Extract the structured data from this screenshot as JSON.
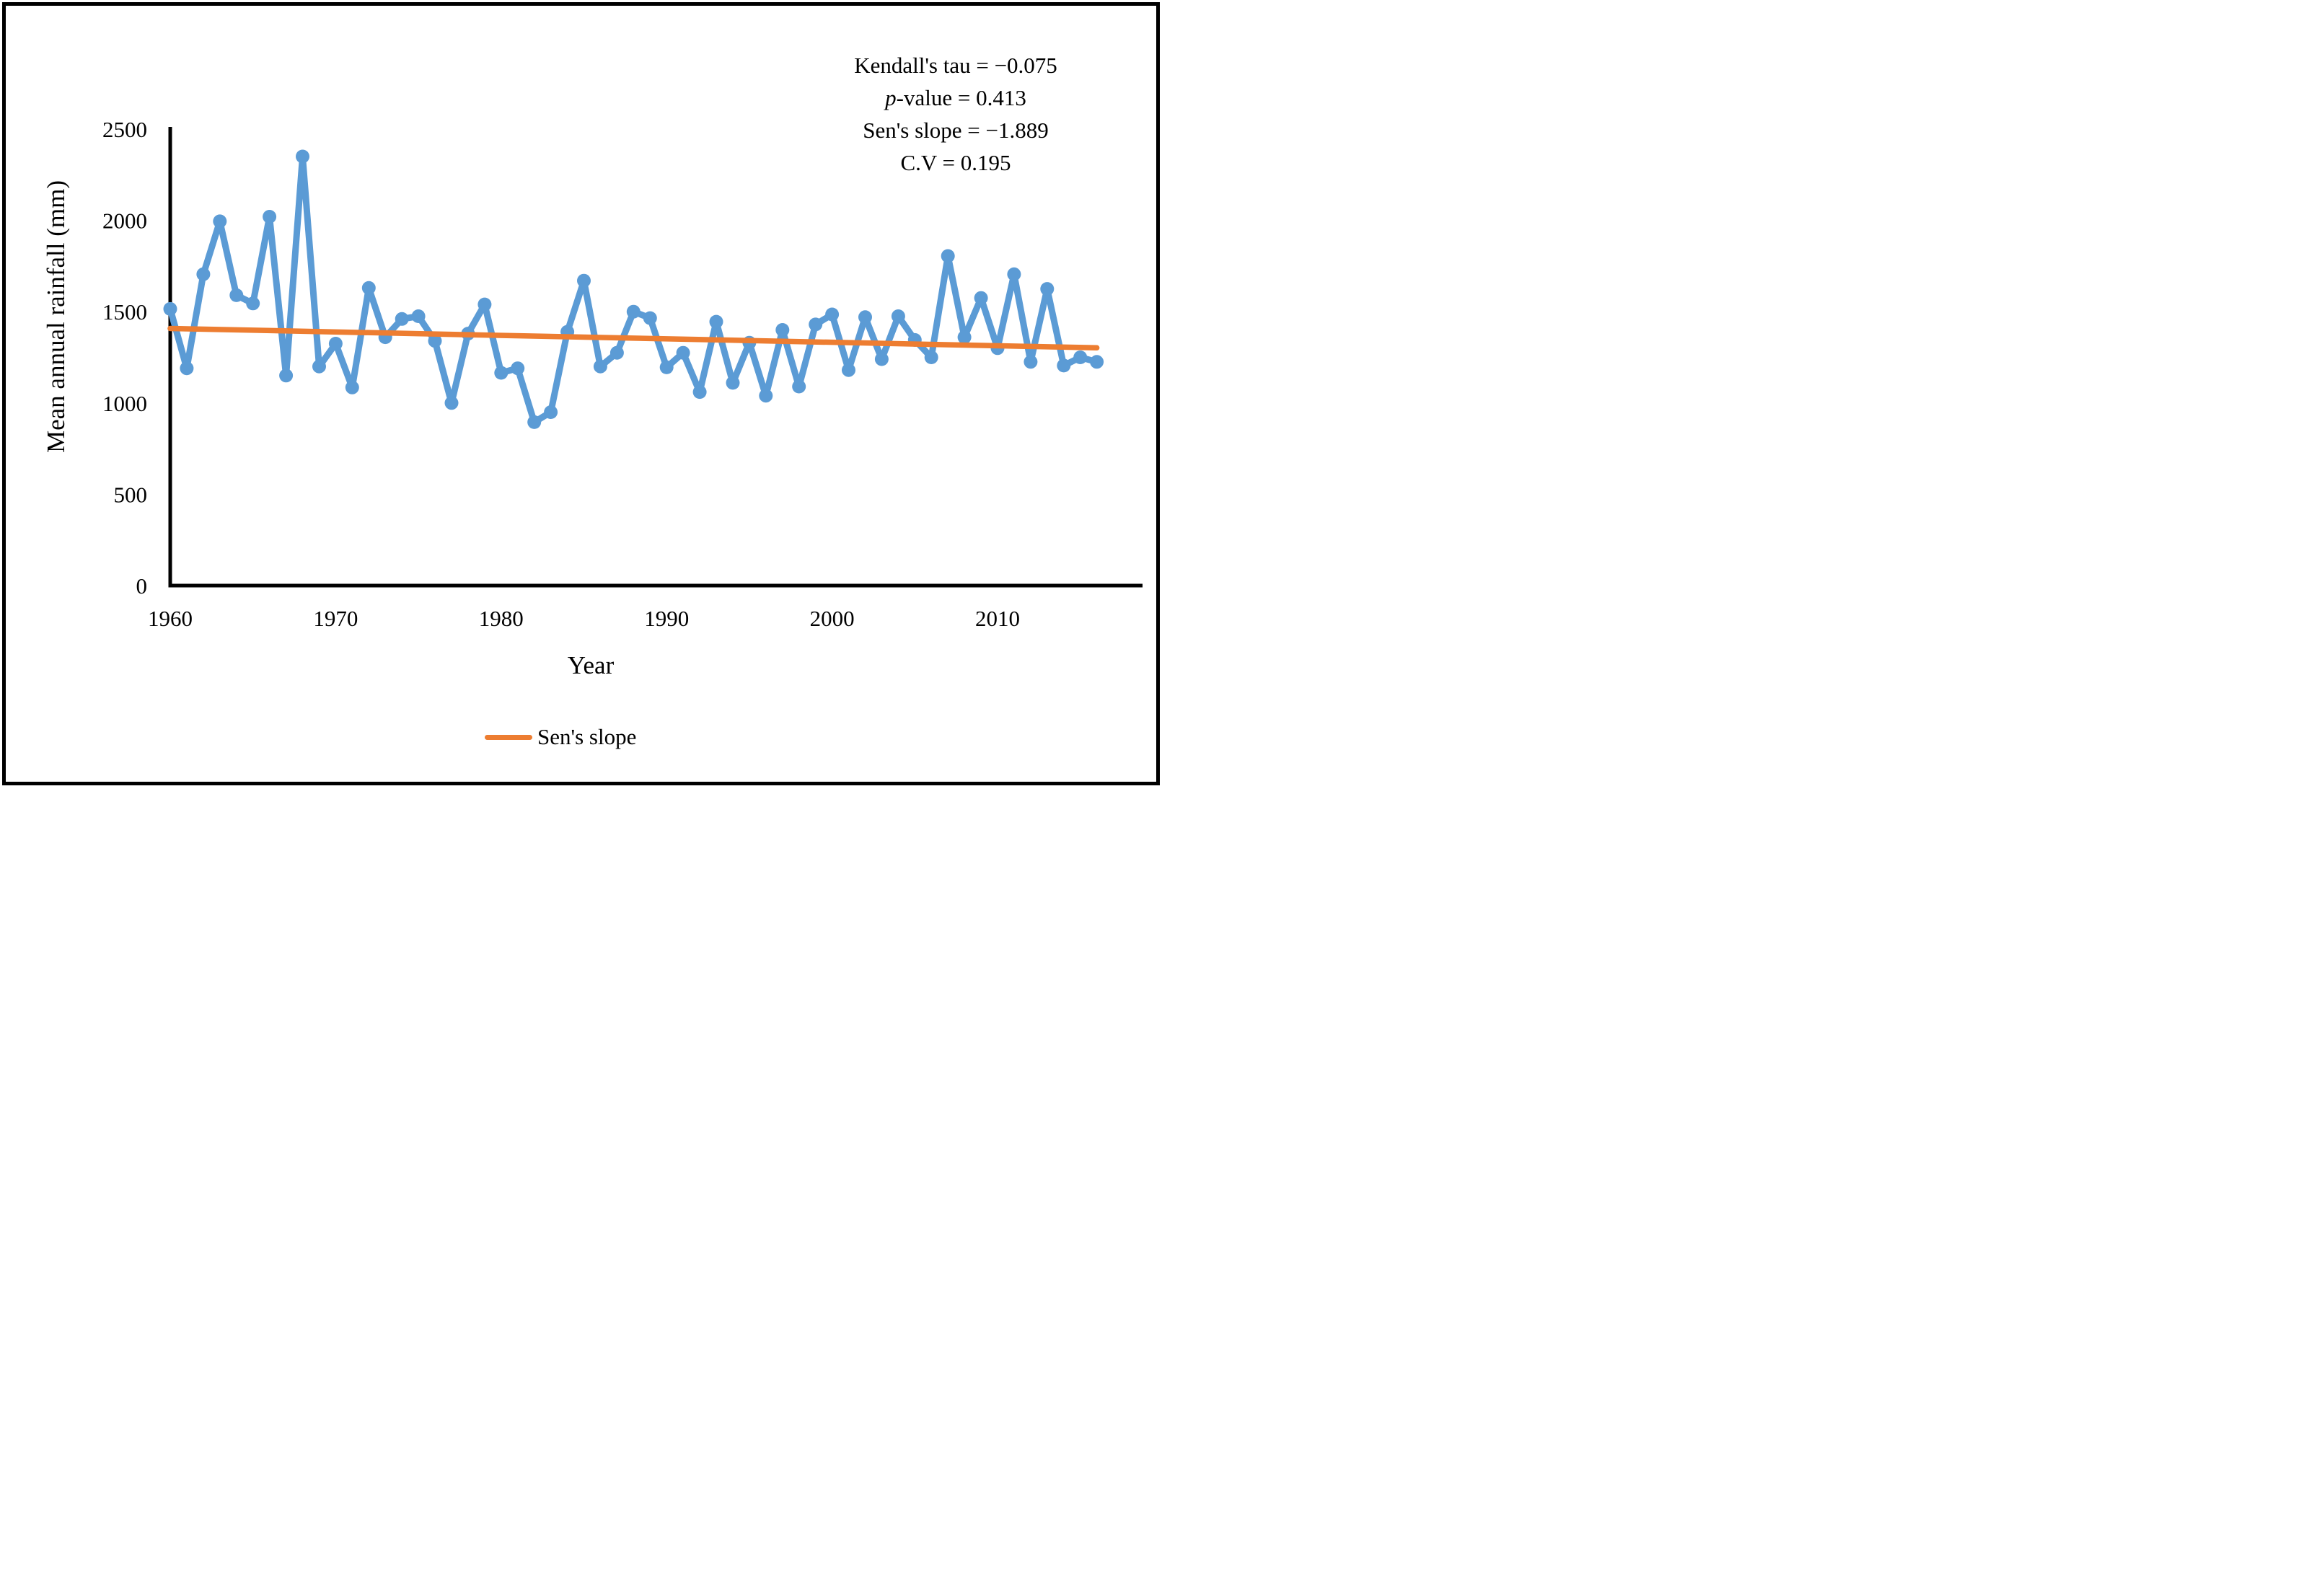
{
  "figure": {
    "y_axis": {
      "title": "Mean annual rainfall (mm)",
      "ticks": [
        0,
        500,
        1000,
        1500,
        2000,
        2500
      ]
    },
    "x_axis": {
      "title": "Year",
      "ticks": [
        1960,
        1970,
        1980,
        1990,
        2000,
        2010
      ]
    },
    "legend": {
      "label": "Sen's slope"
    },
    "stats": {
      "kendall": "Kendall's tau = −0.075",
      "p_italic": "p",
      "p_rest": "-value = 0.413",
      "sen": "Sen's slope = −1.889",
      "cv": "C.V = 0.195"
    },
    "colors": {
      "series": "#5B9BD5",
      "trend": "#ED7D31",
      "axis": "#000000"
    }
  },
  "chart_data": {
    "type": "line",
    "title": "",
    "xlabel": "Year",
    "ylabel": "Mean annual rainfall (mm)",
    "ylim": [
      0,
      2500
    ],
    "xlim": [
      1960,
      2016
    ],
    "grid": false,
    "legend_position": "bottom-center",
    "x": [
      1960,
      1961,
      1962,
      1963,
      1964,
      1965,
      1966,
      1967,
      1968,
      1969,
      1970,
      1971,
      1972,
      1973,
      1974,
      1975,
      1976,
      1977,
      1978,
      1979,
      1980,
      1981,
      1982,
      1983,
      1984,
      1985,
      1986,
      1987,
      1988,
      1989,
      1990,
      1991,
      1992,
      1993,
      1994,
      1995,
      1996,
      1997,
      1998,
      1999,
      2000,
      2001,
      2002,
      2003,
      2004,
      2005,
      2006,
      2007,
      2008,
      2009,
      2010,
      2011,
      2012,
      2013,
      2014,
      2015,
      2016
    ],
    "series": [
      {
        "name": "Mean annual rainfall",
        "marker": "circle",
        "values": [
          1515,
          1190,
          1705,
          1995,
          1590,
          1545,
          2020,
          1150,
          2350,
          1200,
          1325,
          1085,
          1630,
          1360,
          1460,
          1475,
          1340,
          1000,
          1380,
          1540,
          1165,
          1190,
          895,
          950,
          1390,
          1670,
          1200,
          1275,
          1500,
          1465,
          1195,
          1275,
          1060,
          1445,
          1110,
          1330,
          1040,
          1400,
          1090,
          1430,
          1485,
          1180,
          1470,
          1240,
          1475,
          1345,
          1250,
          1805,
          1360,
          1575,
          1300,
          1705,
          1225,
          1625,
          1205,
          1250,
          1225
        ]
      },
      {
        "name": "Sen's slope",
        "type": "trend-line",
        "x_start": 1960,
        "value_start": 1408,
        "x_end": 2016,
        "value_end": 1302
      }
    ],
    "annotations": [
      "Kendall's tau = −0.075",
      "p-value = 0.413",
      "Sen's slope = −1.889",
      "C.V = 0.195"
    ]
  }
}
